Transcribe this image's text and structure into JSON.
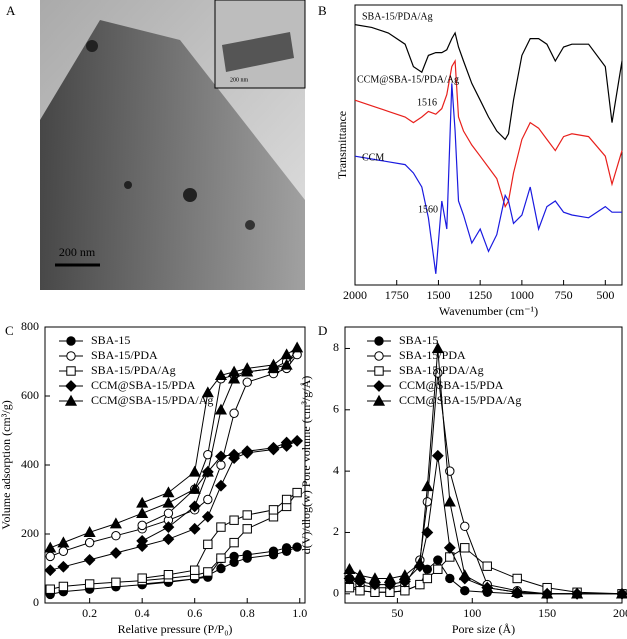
{
  "chart_data": [
    {
      "type": "image",
      "label": "A",
      "scale_bar": "200 nm",
      "inset_scale_bar": "200 nm"
    },
    {
      "type": "line",
      "label": "B",
      "x_label": "Wavenumber (cm⁻¹)",
      "y_label": "Transmittance",
      "x": [
        2000,
        1900,
        1800,
        1700,
        1650,
        1600,
        1560,
        1516,
        1480,
        1450,
        1420,
        1400,
        1380,
        1350,
        1300,
        1250,
        1200,
        1150,
        1100,
        1080,
        1050,
        1000,
        950,
        900,
        850,
        800,
        750,
        700,
        600,
        500,
        460,
        400
      ],
      "xlim": [
        2000,
        400
      ],
      "xticks": [
        2000,
        1750,
        1500,
        1250,
        1000,
        750,
        500
      ],
      "ylim": [
        0,
        100
      ],
      "series": [
        {
          "name": "SBA-15/PDA/Ag",
          "color": "#000000",
          "values": [
            93,
            92,
            90,
            86,
            78,
            76,
            82,
            83,
            83,
            84,
            88,
            90,
            85,
            80,
            72,
            66,
            60,
            55,
            52,
            54,
            66,
            82,
            88,
            88,
            86,
            80,
            85,
            86,
            86,
            78,
            58,
            80
          ]
        },
        {
          "name": "CCM@SBA-15/PDA/Ag",
          "color": "#e8201c",
          "values": [
            66,
            64,
            62,
            60,
            58,
            60,
            62,
            61,
            63,
            68,
            78,
            80,
            60,
            55,
            50,
            46,
            42,
            38,
            28,
            30,
            40,
            52,
            58,
            56,
            52,
            48,
            53,
            54,
            53,
            46,
            36,
            48
          ]
        },
        {
          "name": "CCM",
          "color": "#1a1ae0",
          "values": [
            46,
            45,
            44,
            43,
            40,
            35,
            24,
            4,
            30,
            20,
            72,
            55,
            30,
            25,
            15,
            20,
            12,
            18,
            32,
            30,
            22,
            25,
            35,
            20,
            28,
            30,
            26,
            25,
            24,
            28,
            26,
            26
          ]
        }
      ],
      "annotations": [
        "1516",
        "1560"
      ]
    },
    {
      "type": "line",
      "label": "C",
      "x_label": "Relative pressure (P/P₀)",
      "y_label": "Volume adsorption (cm³/g)",
      "xlim": [
        0.03,
        1.02
      ],
      "xticks": [
        0.2,
        0.4,
        0.6,
        0.8,
        {
          "value": 1,
          "label": "1.0"
        }
      ],
      "ylim": [
        0,
        800
      ],
      "yticks": [
        0,
        200,
        400,
        600,
        800
      ],
      "legend": "upper left",
      "series": [
        {
          "name": "SBA-15",
          "marker": "circle",
          "x": [
            0.05,
            0.1,
            0.2,
            0.3,
            0.4,
            0.5,
            0.6,
            0.65,
            0.7,
            0.75,
            0.8,
            0.9,
            0.95,
            0.99,
            0.95,
            0.9,
            0.8,
            0.75,
            0.7,
            0.65,
            0.6,
            0.5,
            0.4
          ],
          "values": [
            25,
            33,
            40,
            47,
            53,
            60,
            70,
            80,
            100,
            118,
            130,
            140,
            150,
            162,
            160,
            150,
            140,
            135,
            128,
            75,
            70,
            62,
            55
          ]
        },
        {
          "name": "SBA-15/PDA",
          "marker": "circle-open",
          "x": [
            0.05,
            0.1,
            0.2,
            0.3,
            0.4,
            0.5,
            0.6,
            0.65,
            0.7,
            0.75,
            0.8,
            0.9,
            0.95,
            0.99,
            0.95,
            0.9,
            0.8,
            0.75,
            0.7,
            0.65,
            0.6,
            0.5,
            0.4
          ],
          "values": [
            135,
            150,
            175,
            195,
            215,
            240,
            270,
            300,
            400,
            550,
            640,
            665,
            680,
            720,
            700,
            680,
            670,
            660,
            650,
            430,
            330,
            260,
            225
          ]
        },
        {
          "name": "SBA-15/PDA/Ag",
          "marker": "square-open",
          "x": [
            0.05,
            0.1,
            0.2,
            0.3,
            0.4,
            0.5,
            0.6,
            0.65,
            0.7,
            0.75,
            0.8,
            0.9,
            0.95,
            0.99,
            0.95,
            0.9,
            0.8,
            0.75,
            0.7,
            0.65,
            0.6,
            0.5,
            0.4
          ],
          "values": [
            40,
            48,
            55,
            60,
            65,
            72,
            80,
            90,
            130,
            175,
            215,
            250,
            280,
            320,
            300,
            270,
            255,
            240,
            220,
            170,
            95,
            82,
            72
          ]
        },
        {
          "name": "CCM@SBA-15/PDA",
          "marker": "diamond",
          "x": [
            0.05,
            0.1,
            0.2,
            0.3,
            0.4,
            0.5,
            0.6,
            0.65,
            0.7,
            0.75,
            0.8,
            0.9,
            0.95,
            0.99,
            0.95,
            0.9,
            0.8,
            0.75,
            0.7,
            0.65,
            0.6,
            0.5,
            0.4
          ],
          "values": [
            95,
            105,
            125,
            145,
            165,
            185,
            215,
            250,
            340,
            420,
            435,
            445,
            455,
            470,
            465,
            450,
            440,
            430,
            425,
            380,
            280,
            220,
            180
          ]
        },
        {
          "name": "CCM@SBA-15/PDA/Ag",
          "marker": "triangle",
          "x": [
            0.05,
            0.1,
            0.2,
            0.3,
            0.4,
            0.5,
            0.6,
            0.65,
            0.7,
            0.75,
            0.8,
            0.9,
            0.95,
            0.99,
            0.95,
            0.9,
            0.8,
            0.75,
            0.7,
            0.65,
            0.6,
            0.5,
            0.4
          ],
          "values": [
            160,
            175,
            205,
            230,
            260,
            290,
            330,
            380,
            560,
            650,
            670,
            680,
            690,
            740,
            720,
            690,
            680,
            670,
            660,
            610,
            380,
            320,
            290
          ]
        }
      ]
    },
    {
      "type": "line",
      "label": "D",
      "x_label": "Pore size (Å)",
      "y_label": "d(V)/dlog(w) Pore volume (cm³/g/Å)",
      "xlim": [
        15,
        200
      ],
      "xticks": [
        50,
        100,
        150,
        200
      ],
      "ylim": [
        -0.3,
        8.7
      ],
      "yticks": [
        0,
        2,
        4,
        6,
        8
      ],
      "legend": "upper left",
      "series": [
        {
          "name": "SBA-15",
          "marker": "circle",
          "x": [
            18,
            25,
            35,
            45,
            55,
            65,
            70,
            77,
            85,
            95,
            110,
            130,
            150,
            170,
            200
          ],
          "values": [
            0.3,
            0.1,
            0.05,
            0.05,
            0.1,
            0.3,
            0.8,
            1.1,
            0.5,
            0.1,
            0.05,
            0,
            0,
            0,
            0
          ]
        },
        {
          "name": "SBA-15/PDA",
          "marker": "circle-open",
          "x": [
            18,
            25,
            35,
            45,
            55,
            65,
            70,
            77,
            85,
            95,
            110,
            130,
            150,
            170,
            200
          ],
          "values": [
            0.5,
            0.3,
            0.2,
            0.2,
            0.3,
            1.1,
            3.0,
            7.2,
            4.0,
            2.2,
            0.3,
            0.1,
            0,
            0,
            0
          ]
        },
        {
          "name": "SBA-15/PDA/Ag",
          "marker": "square-open",
          "x": [
            18,
            25,
            35,
            45,
            55,
            65,
            70,
            77,
            85,
            95,
            110,
            130,
            150,
            170,
            200
          ],
          "values": [
            0.2,
            0.1,
            0.05,
            0.05,
            0.1,
            0.3,
            0.5,
            0.8,
            1.2,
            1.5,
            0.9,
            0.5,
            0.2,
            0.05,
            0
          ]
        },
        {
          "name": "CCM@SBA-15/PDA",
          "marker": "diamond",
          "x": [
            18,
            25,
            35,
            45,
            55,
            65,
            70,
            77,
            85,
            95,
            110,
            130,
            150,
            170,
            200
          ],
          "values": [
            0.5,
            0.4,
            0.3,
            0.3,
            0.4,
            0.9,
            2.0,
            4.5,
            1.5,
            0.5,
            0.2,
            0.05,
            0,
            0,
            0
          ]
        },
        {
          "name": "CCM@SBA-15/PDA/Ag",
          "marker": "triangle",
          "x": [
            18,
            25,
            35,
            45,
            55,
            65,
            70,
            77,
            85,
            95,
            110,
            130,
            150,
            170,
            200
          ],
          "values": [
            0.8,
            0.6,
            0.5,
            0.5,
            0.6,
            1.0,
            3.5,
            8.0,
            3.0,
            0.6,
            0.2,
            0.05,
            0,
            0,
            0
          ]
        }
      ]
    }
  ]
}
